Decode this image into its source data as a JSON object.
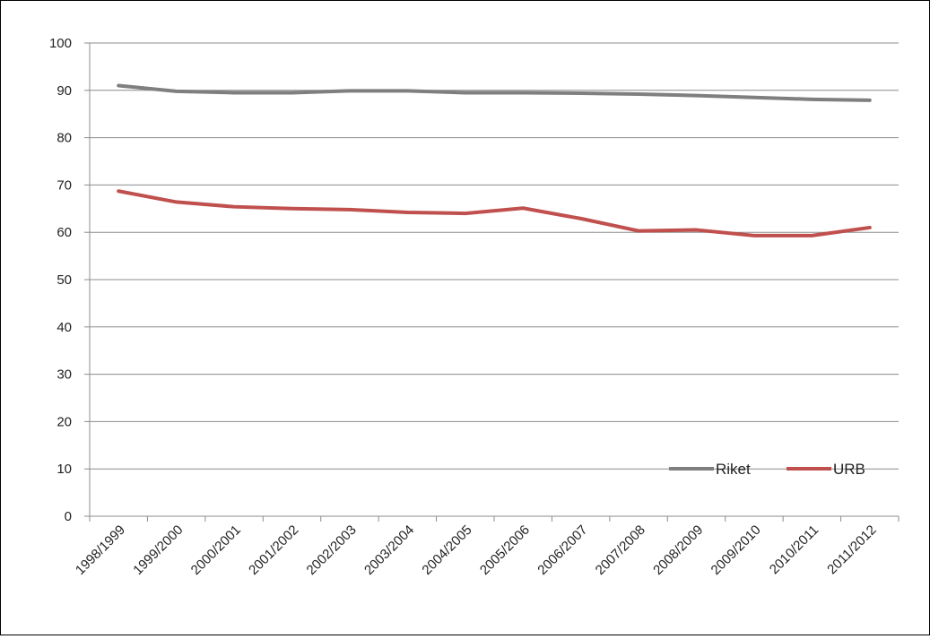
{
  "chart_data": {
    "type": "line",
    "title": "",
    "xlabel": "",
    "ylabel": "",
    "categories": [
      "1998/1999",
      "1999/2000",
      "2000/2001",
      "2001/2002",
      "2002/2003",
      "2003/2004",
      "2004/2005",
      "2005/2006",
      "2006/2007",
      "2007/2008",
      "2008/2009",
      "2009/2010",
      "2010/2011",
      "2011/2012"
    ],
    "ylim": [
      0,
      100
    ],
    "yticks": [
      0,
      10,
      20,
      30,
      40,
      50,
      60,
      70,
      80,
      90,
      100
    ],
    "grid": true,
    "legend_position": "bottom-right",
    "series": [
      {
        "name": "Riket",
        "color": "#7f7f7f",
        "values": [
          91,
          89.8,
          89.5,
          89.5,
          89.9,
          89.9,
          89.5,
          89.5,
          89.4,
          89.2,
          88.9,
          88.5,
          88.1,
          87.9
        ]
      },
      {
        "name": "URB",
        "color": "#c0504d",
        "values": [
          68.7,
          66.4,
          65.4,
          65.0,
          64.8,
          64.2,
          64.0,
          65.1,
          62.9,
          60.3,
          60.5,
          59.3,
          59.3,
          61.0
        ]
      }
    ]
  }
}
